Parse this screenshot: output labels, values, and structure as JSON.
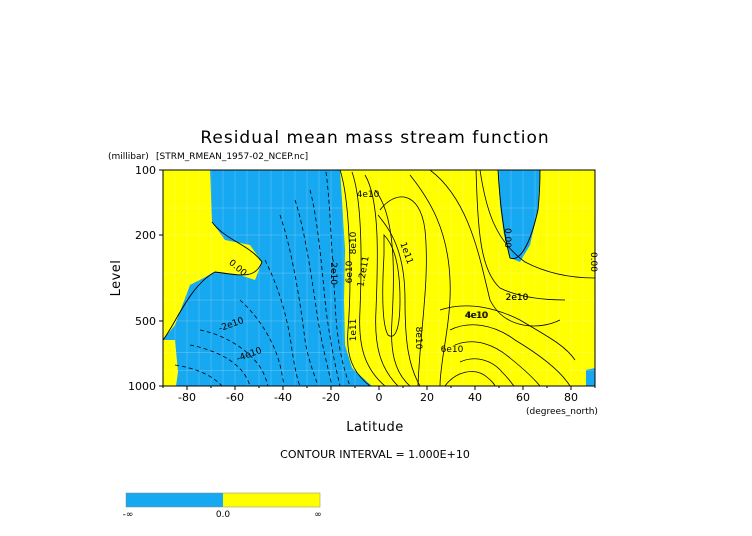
{
  "chart_data": {
    "type": "contour",
    "title": "Residual mean mass stream function",
    "subtitle": "[STRM_RMEAN_1957-02_NCEP.nc]",
    "y_units": "(millibar)",
    "x_units": "(degrees_north)",
    "xlabel": "Latitude",
    "ylabel": "Level",
    "xlim": [
      -90,
      90
    ],
    "ylim": [
      1000,
      100
    ],
    "y_scale": "log",
    "x_ticks": [
      "-80",
      "-60",
      "-40",
      "-20",
      "0",
      "20",
      "40",
      "60",
      "80"
    ],
    "y_ticks": [
      "100",
      "200",
      "500",
      "1000"
    ],
    "contour_interval_text": "CONTOUR INTERVAL = 1.000E+10",
    "contour_labels": [
      "4e10",
      "1e11",
      "1.2e11",
      "-2e10",
      "2e10",
      "4e10",
      "8e10",
      "6e10",
      "4e10",
      "2e10",
      "0.00",
      "0.00",
      "0.00",
      "-2e10",
      "-4e10",
      "6e10",
      "8e10",
      "1e11"
    ],
    "colors": {
      "negative": "#16a8f0",
      "positive": "#ffff00"
    },
    "colorbar": {
      "labels": [
        "-∞",
        "0.0",
        "∞"
      ]
    }
  }
}
